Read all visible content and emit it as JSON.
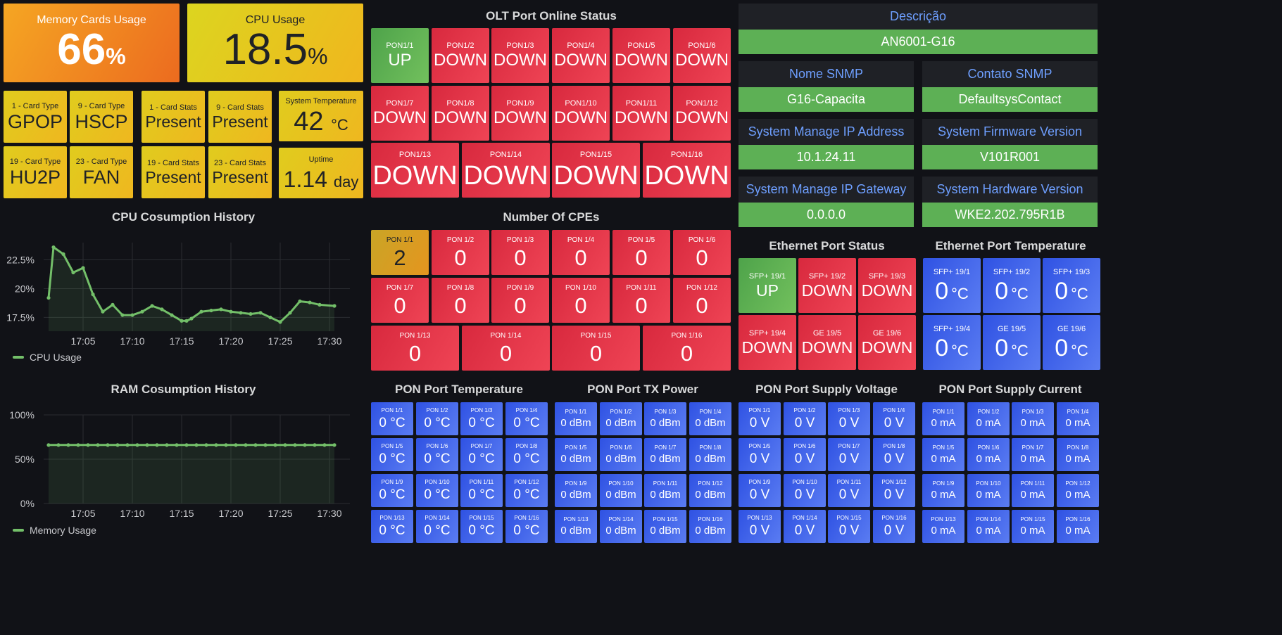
{
  "memory": {
    "title": "Memory Cards Usage",
    "value": "66",
    "unit": "%"
  },
  "cpu": {
    "title": "CPU Usage",
    "value": "18.5",
    "unit": "%"
  },
  "cards": [
    {
      "label": "1 - Card Type",
      "value": "GPOP"
    },
    {
      "label": "9 - Card Type",
      "value": "HSCP"
    },
    {
      "label": "19 - Card Type",
      "value": "HU2P"
    },
    {
      "label": "23 - Card Type",
      "value": "FAN"
    }
  ],
  "card_stats": [
    {
      "label": "1 - Card Stats",
      "value": "Present"
    },
    {
      "label": "9 - Card Stats",
      "value": "Present"
    },
    {
      "label": "19 - Card Stats",
      "value": "Present"
    },
    {
      "label": "23 - Card Stats",
      "value": "Present"
    }
  ],
  "temperature": {
    "label": "System Temperature",
    "value": "42",
    "unit": "°C"
  },
  "uptime": {
    "label": "Uptime",
    "value": "1.14",
    "unit": "day"
  },
  "olt": {
    "title": "OLT Port Online Status",
    "ports": [
      {
        "label": "PON1/1",
        "value": "UP",
        "color": "#5ba84e"
      },
      {
        "label": "PON1/2",
        "value": "DOWN",
        "color": "#e02f44"
      },
      {
        "label": "PON1/3",
        "value": "DOWN",
        "color": "#e02f44"
      },
      {
        "label": "PON1/4",
        "value": "DOWN",
        "color": "#e02f44"
      },
      {
        "label": "PON1/5",
        "value": "DOWN",
        "color": "#e02f44"
      },
      {
        "label": "PON1/6",
        "value": "DOWN",
        "color": "#e02f44"
      },
      {
        "label": "PON1/7",
        "value": "DOWN",
        "color": "#e02f44"
      },
      {
        "label": "PON1/8",
        "value": "DOWN",
        "color": "#e02f44"
      },
      {
        "label": "PON1/9",
        "value": "DOWN",
        "color": "#e02f44"
      },
      {
        "label": "PON1/10",
        "value": "DOWN",
        "color": "#e02f44"
      },
      {
        "label": "PON1/11",
        "value": "DOWN",
        "color": "#e02f44"
      },
      {
        "label": "PON1/12",
        "value": "DOWN",
        "color": "#e02f44"
      },
      {
        "label": "PON1/13",
        "value": "DOWN",
        "color": "#e02f44"
      },
      {
        "label": "PON1/14",
        "value": "DOWN",
        "color": "#e02f44"
      },
      {
        "label": "PON1/15",
        "value": "DOWN",
        "color": "#e02f44"
      },
      {
        "label": "PON1/16",
        "value": "DOWN",
        "color": "#e02f44"
      }
    ]
  },
  "cpes": {
    "title": "Number Of CPEs",
    "ports": [
      {
        "label": "PON 1/1",
        "value": "2"
      },
      {
        "label": "PON 1/2",
        "value": "0"
      },
      {
        "label": "PON 1/3",
        "value": "0"
      },
      {
        "label": "PON 1/4",
        "value": "0"
      },
      {
        "label": "PON 1/5",
        "value": "0"
      },
      {
        "label": "PON 1/6",
        "value": "0"
      },
      {
        "label": "PON 1/7",
        "value": "0"
      },
      {
        "label": "PON 1/8",
        "value": "0"
      },
      {
        "label": "PON 1/9",
        "value": "0"
      },
      {
        "label": "PON 1/10",
        "value": "0"
      },
      {
        "label": "PON 1/11",
        "value": "0"
      },
      {
        "label": "PON 1/12",
        "value": "0"
      },
      {
        "label": "PON 1/13",
        "value": "0"
      },
      {
        "label": "PON 1/14",
        "value": "0"
      },
      {
        "label": "PON 1/15",
        "value": "0"
      },
      {
        "label": "PON 1/16",
        "value": "0"
      }
    ]
  },
  "info": {
    "descricao": {
      "label": "Descrição",
      "value": "AN6001-G16"
    },
    "nome_snmp": {
      "label": "Nome SNMP",
      "value": "G16-Capacita"
    },
    "contato_snmp": {
      "label": "Contato SNMP",
      "value": "DefaultsysContact"
    },
    "manage_ip": {
      "label": "System Manage IP Address",
      "value": "10.1.24.11"
    },
    "firmware": {
      "label": "System Firmware Version",
      "value": "V101R001"
    },
    "gateway": {
      "label": "System Manage IP Gateway",
      "value": "0.0.0.0"
    },
    "hardware": {
      "label": "System Hardware Version",
      "value": "WKE2.202.795R1B"
    }
  },
  "eth_status": {
    "title": "Ethernet Port Status",
    "ports": [
      {
        "label": "SFP+ 19/1",
        "value": "UP",
        "color": "#5ba84e"
      },
      {
        "label": "SFP+ 19/2",
        "value": "DOWN",
        "color": "#e02f44"
      },
      {
        "label": "SFP+ 19/3",
        "value": "DOWN",
        "color": "#e02f44"
      },
      {
        "label": "SFP+ 19/4",
        "value": "DOWN",
        "color": "#e02f44"
      },
      {
        "label": "GE 19/5",
        "value": "DOWN",
        "color": "#e02f44"
      },
      {
        "label": "GE 19/6",
        "value": "DOWN",
        "color": "#e02f44"
      }
    ]
  },
  "eth_temp": {
    "title": "Ethernet Port Temperature",
    "unit": "°C",
    "ports": [
      {
        "label": "SFP+ 19/1",
        "value": "0"
      },
      {
        "label": "SFP+ 19/2",
        "value": "0"
      },
      {
        "label": "SFP+ 19/3",
        "value": "0"
      },
      {
        "label": "SFP+ 19/4",
        "value": "0"
      },
      {
        "label": "GE 19/5",
        "value": "0"
      },
      {
        "label": "GE 19/6",
        "value": "0"
      }
    ]
  },
  "pon_panels": [
    {
      "title": "PON Port Temperature",
      "display": "0 °C"
    },
    {
      "title": "PON Port TX Power",
      "display": "0 dBm"
    },
    {
      "title": "PON Port Supply Voltage",
      "display": "0 V"
    },
    {
      "title": "PON Port Supply Current",
      "display": "0 mA"
    }
  ],
  "pon_labels": [
    "PON 1/1",
    "PON 1/2",
    "PON 1/3",
    "PON 1/4",
    "PON 1/5",
    "PON 1/6",
    "PON 1/7",
    "PON 1/8",
    "PON 1/9",
    "PON 1/10",
    "PON 1/11",
    "PON 1/12",
    "PON 1/13",
    "PON 1/14",
    "PON 1/15",
    "PON 1/16"
  ],
  "cpu_chart": {
    "title": "CPU Cosumption History",
    "legend": "CPU Usage",
    "color": "#73bf69",
    "chart_data": {
      "type": "line",
      "x_ticks": [
        "17:05",
        "17:10",
        "17:15",
        "17:20",
        "17:25",
        "17:30"
      ],
      "y_ticks": [
        "22.5%",
        "20%",
        "17.5%"
      ],
      "y_tick_values": [
        22.5,
        20,
        17.5
      ],
      "x_minutes": [
        0.5,
        1,
        2,
        3,
        4,
        5,
        6,
        7,
        8,
        9,
        10,
        11,
        12,
        13,
        14,
        14.5,
        15,
        16,
        17,
        18,
        19,
        20,
        21,
        22,
        23,
        24,
        25,
        26,
        27,
        28,
        29.5
      ],
      "x_start": "17:01",
      "values": [
        19.2,
        23.6,
        23.0,
        21.4,
        21.8,
        19.5,
        18.0,
        18.6,
        17.7,
        17.7,
        18.0,
        18.5,
        18.2,
        17.7,
        17.2,
        17.2,
        17.4,
        18.0,
        18.1,
        18.2,
        18.0,
        17.9,
        17.8,
        17.9,
        17.5,
        17.1,
        17.9,
        18.9,
        18.8,
        18.6,
        18.5
      ],
      "ylim": [
        16.3,
        24.0
      ]
    }
  },
  "ram_chart": {
    "title": "RAM Cosumption History",
    "legend": "Memory Usage",
    "color": "#73bf69",
    "chart_data": {
      "type": "line",
      "x_ticks": [
        "17:05",
        "17:10",
        "17:15",
        "17:20",
        "17:25",
        "17:30"
      ],
      "y_ticks": [
        "100%",
        "50%",
        "0%"
      ],
      "y_tick_values": [
        100,
        50,
        0
      ],
      "values": [
        66,
        66,
        66,
        66,
        66,
        66,
        66,
        66,
        66,
        66,
        66,
        66,
        66,
        66,
        66,
        66,
        66,
        66,
        66,
        66,
        66,
        66,
        66,
        66,
        66,
        66,
        66,
        66,
        66,
        66
      ],
      "ylim": [
        0,
        100
      ]
    }
  }
}
